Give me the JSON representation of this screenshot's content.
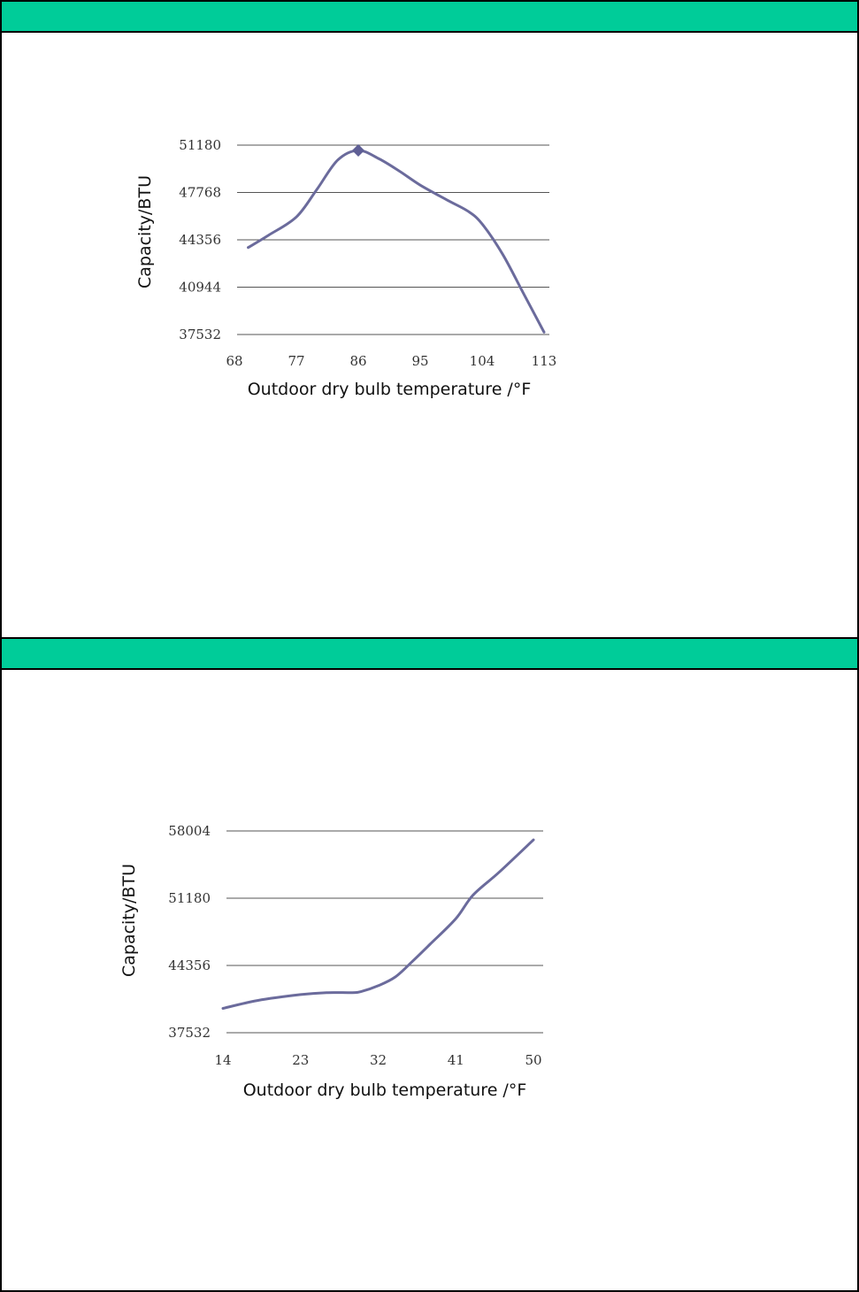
{
  "colors": {
    "band": "#00cc99",
    "series": "#6b6b9c",
    "grid": "#555555"
  },
  "chart_data": [
    {
      "type": "line",
      "xlabel": "Outdoor dry bulb temperature /°F",
      "ylabel": "Capacity/BTU",
      "x_ticks": [
        "68",
        "77",
        "86",
        "95",
        "104",
        "113"
      ],
      "y_ticks": [
        "51180",
        "47768",
        "44356",
        "40944",
        "37532"
      ],
      "xlim": [
        68,
        113
      ],
      "ylim": [
        37532,
        51180
      ],
      "grid": true,
      "series": [
        {
          "x": [
            70,
            73,
            77,
            80,
            83,
            86,
            89,
            92,
            95,
            99,
            102,
            104,
            107,
            110,
            113
          ],
          "y": [
            43800,
            44700,
            46000,
            48000,
            50100,
            50800,
            50200,
            49300,
            48300,
            47200,
            46400,
            45500,
            43300,
            40500,
            37700
          ],
          "markers": [
            {
              "x": 86,
              "y": 50800
            }
          ]
        }
      ]
    },
    {
      "type": "line",
      "xlabel": "Outdoor dry bulb temperature /°F",
      "ylabel": "Capacity/BTU",
      "x_ticks": [
        "14",
        "23",
        "32",
        "41",
        "50"
      ],
      "y_ticks": [
        "58004",
        "51180",
        "44356",
        "37532"
      ],
      "xlim": [
        14,
        50
      ],
      "ylim": [
        37532,
        58004
      ],
      "grid": true,
      "series": [
        {
          "x": [
            14,
            18,
            23,
            26,
            29,
            30,
            32,
            34,
            36,
            38,
            41,
            43,
            46,
            50
          ],
          "y": [
            40000,
            40800,
            41400,
            41600,
            41600,
            41700,
            42300,
            43200,
            44800,
            46500,
            49100,
            51500,
            53800,
            57100
          ],
          "markers": []
        }
      ]
    }
  ]
}
